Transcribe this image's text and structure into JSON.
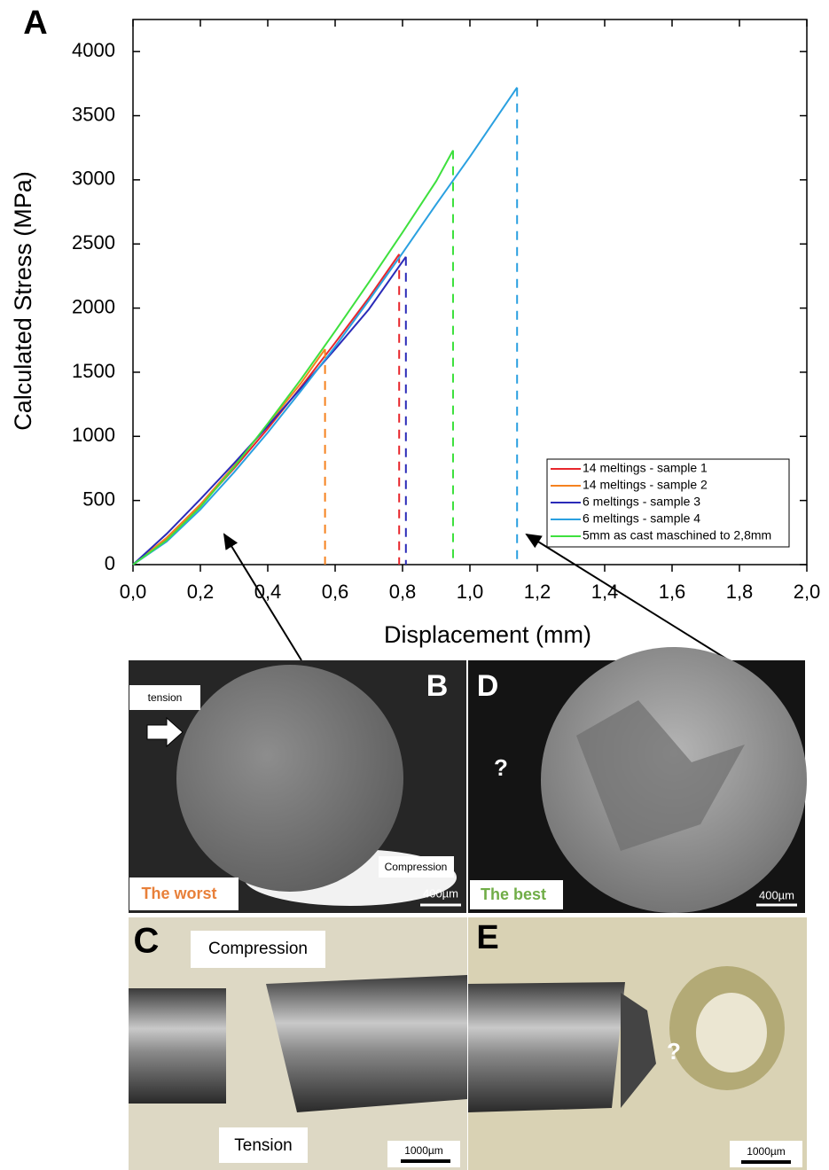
{
  "chart_data": {
    "type": "line",
    "x_label": "Displacement (mm)",
    "y_label": "Calculated Stress (MPa)",
    "xlim": [
      0,
      2.0
    ],
    "ylim": [
      0,
      4250
    ],
    "xticks": [
      {
        "value": 0,
        "label": "0,0"
      },
      {
        "value": 0.2,
        "label": "0,2"
      },
      {
        "value": 0.4,
        "label": "0,4"
      },
      {
        "value": 0.6,
        "label": "0,6"
      },
      {
        "value": 0.8,
        "label": "0,8"
      },
      {
        "value": 1.0,
        "label": "1,0"
      },
      {
        "value": 1.2,
        "label": "1,2"
      },
      {
        "value": 1.4,
        "label": "1,4"
      },
      {
        "value": 1.6,
        "label": "1,6"
      },
      {
        "value": 1.8,
        "label": "1,8"
      },
      {
        "value": 2.0,
        "label": "2,0"
      }
    ],
    "yticks": [
      0,
      500,
      1000,
      1500,
      2000,
      2500,
      3000,
      3500,
      4000
    ],
    "legend": "lower right",
    "series": [
      {
        "name": "14 meltings - sample 1",
        "color": "#e8262c",
        "x": [
          0,
          0.1,
          0.2,
          0.3,
          0.4,
          0.5,
          0.6,
          0.7,
          0.79,
          0.79
        ],
        "values": [
          0,
          200,
          460,
          750,
          1060,
          1390,
          1730,
          2080,
          2420,
          0
        ]
      },
      {
        "name": "14 meltings - sample 2",
        "color": "#f5821f",
        "x": [
          0,
          0.1,
          0.2,
          0.3,
          0.4,
          0.5,
          0.57,
          0.57
        ],
        "values": [
          0,
          210,
          470,
          770,
          1090,
          1420,
          1680,
          0
        ]
      },
      {
        "name": "6 meltings - sample 3",
        "color": "#2b2bb8",
        "x": [
          0,
          0.1,
          0.2,
          0.3,
          0.4,
          0.5,
          0.6,
          0.7,
          0.81,
          0.81
        ],
        "values": [
          0,
          240,
          510,
          790,
          1080,
          1380,
          1680,
          1990,
          2400,
          0
        ]
      },
      {
        "name": "6 meltings - sample 4",
        "color": "#2aa0e0",
        "x": [
          0,
          0.1,
          0.2,
          0.3,
          0.4,
          0.5,
          0.6,
          0.7,
          0.8,
          0.9,
          1.0,
          1.14,
          1.14
        ],
        "values": [
          0,
          180,
          430,
          720,
          1030,
          1360,
          1700,
          2060,
          2430,
          2810,
          3180,
          3720,
          0
        ]
      },
      {
        "name": "5mm as cast maschined to 2,8mm",
        "color": "#3ee03e",
        "x": [
          0,
          0.1,
          0.2,
          0.3,
          0.4,
          0.5,
          0.6,
          0.7,
          0.8,
          0.9,
          0.95,
          0.95
        ],
        "values": [
          0,
          190,
          450,
          760,
          1100,
          1450,
          1820,
          2200,
          2590,
          2990,
          3230,
          0
        ]
      }
    ]
  },
  "panels": {
    "a": "A",
    "b": "B",
    "c": "C",
    "d": "D",
    "e": "E",
    "b_tension": "tension",
    "b_compression": "Compression",
    "b_scale": "400µm",
    "b_caption": "The worst",
    "d_question": "?",
    "d_scale": "400µm",
    "d_caption": "The best",
    "c_compression": "Compression",
    "c_tension": "Tension",
    "c_scale": "1000µm",
    "e_question": "?",
    "e_scale": "1000µm"
  }
}
